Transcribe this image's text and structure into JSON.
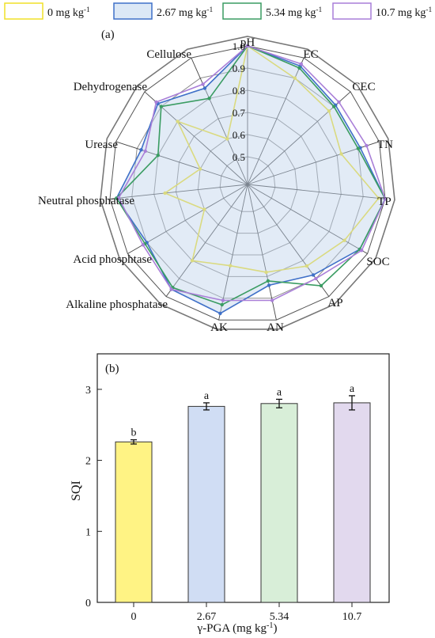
{
  "legend": [
    {
      "label": "0 mg kg",
      "sup": "-1",
      "color": "#f0e028",
      "fill": "#ffffff"
    },
    {
      "label": "2.67 mg kg",
      "sup": "-1",
      "color": "#3f70c8",
      "fill": "#dce8f6"
    },
    {
      "label": "5.34 mg kg",
      "sup": "-1",
      "color": "#3a9c62",
      "fill": "#ffffff"
    },
    {
      "label": "10.7 mg kg",
      "sup": "-1",
      "color": "#a97fd8",
      "fill": "#ffffff"
    }
  ],
  "chart_data": [
    {
      "type": "radar",
      "panel_label": "(a)",
      "axes": [
        "pH",
        "EC",
        "CEC",
        "TN",
        "TP",
        "SOC",
        "AP",
        "AN",
        "AK",
        "Alkaline phosphatase",
        "Acid phosphtase",
        "Neutral phosphatase",
        "Urease",
        "Dehydrogenase",
        "Cellulose"
      ],
      "radial_range": [
        0.5,
        1.0
      ],
      "radial_ticks": [
        "0.5",
        "0.6",
        "0.7",
        "0.8",
        "0.9",
        "1.0"
      ],
      "grid": true,
      "series": [
        {
          "name": "0 mg kg-1",
          "values": [
            1.0,
            0.9,
            0.87,
            0.82,
            0.97,
            0.88,
            0.83,
            0.78,
            0.75,
            0.8,
            0.6,
            0.75,
            0.6,
            0.8,
            0.6
          ]
        },
        {
          "name": "2.67 mg kg-1",
          "values": [
            1.0,
            0.96,
            0.91,
            0.91,
            1.0,
            0.96,
            0.88,
            0.84,
            0.97,
            0.96,
            0.9,
            0.97,
            0.88,
            0.92,
            0.85
          ]
        },
        {
          "name": "5.34 mg kg-1",
          "values": [
            1.0,
            0.95,
            0.9,
            0.9,
            1.0,
            0.96,
            0.94,
            0.82,
            0.93,
            0.95,
            0.91,
            0.97,
            0.8,
            0.9,
            0.8
          ]
        },
        {
          "name": "10.7 mg kg-1",
          "values": [
            1.0,
            0.97,
            0.93,
            0.94,
            1.0,
            0.97,
            0.9,
            0.91,
            0.91,
            0.96,
            0.92,
            0.96,
            0.86,
            0.93,
            0.87
          ]
        }
      ]
    },
    {
      "type": "bar",
      "panel_label": "(b)",
      "categories": [
        "0",
        "2.67",
        "5.34",
        "10.7"
      ],
      "values": [
        2.26,
        2.76,
        2.8,
        2.81
      ],
      "errors": [
        0.03,
        0.05,
        0.06,
        0.1
      ],
      "letters": [
        "b",
        "a",
        "a",
        "a"
      ],
      "colors": [
        "#fff384",
        "#d0ddf4",
        "#d8eed8",
        "#e2d9ee"
      ],
      "xlabel": "γ-PGA (mg kg",
      "xlabel_sup": "-1",
      "xlabel_end": ")",
      "ylabel": "SQI",
      "ylim": [
        0,
        3.5
      ],
      "yticks": [
        "0",
        "1",
        "2",
        "3"
      ]
    }
  ]
}
